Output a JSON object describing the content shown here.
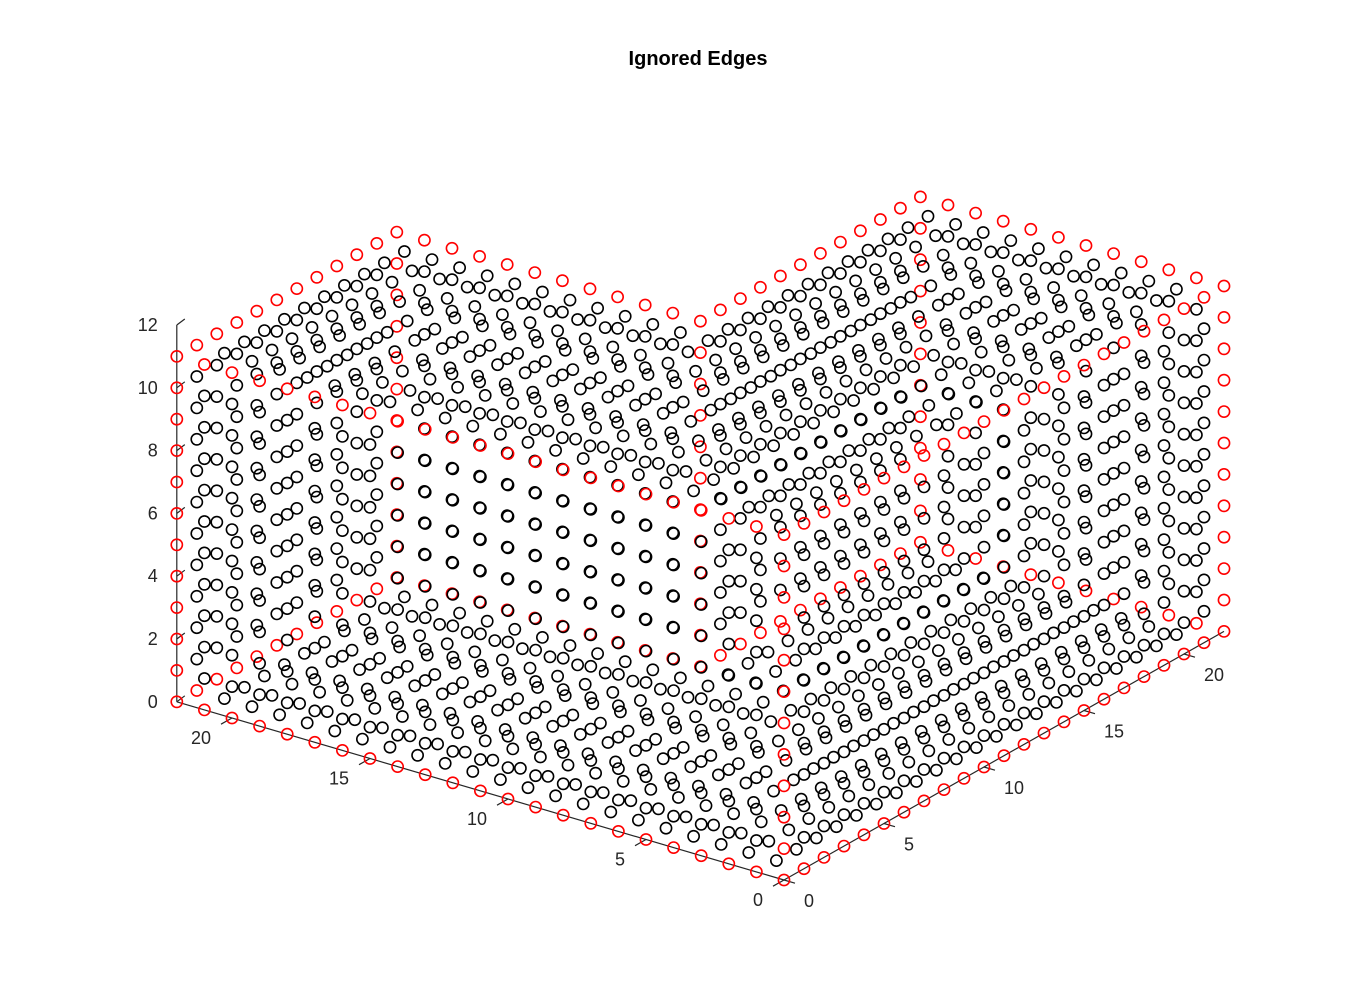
{
  "chart_data": {
    "type": "scatter",
    "title": "Ignored Edges",
    "description_shape": "L-shaped solid sampled on a unit grid",
    "xlabel": "",
    "ylabel": "",
    "zlabel": "",
    "xlim": [
      0,
      22
    ],
    "ylim": [
      0,
      22
    ],
    "zlim": [
      0,
      12
    ],
    "x_ticks": [
      "0",
      "5",
      "10",
      "15",
      "20"
    ],
    "y_ticks": [
      "0",
      "5",
      "10",
      "15",
      "20"
    ],
    "z_ticks": [
      "0",
      "2",
      "4",
      "6",
      "8",
      "10",
      "12"
    ],
    "point_spacing": 1,
    "solid_blocks": [
      {
        "x": [
          0,
          22
        ],
        "y": [
          0,
          11
        ],
        "z": [
          0,
          11
        ]
      },
      {
        "x": [
          0,
          11
        ],
        "y": [
          11,
          22
        ],
        "z": [
          0,
          11
        ]
      }
    ],
    "marker": "o",
    "series": [
      {
        "name": "",
        "color": "#ff0000",
        "rule": "points on the outer edges of the solid"
      },
      {
        "name": "",
        "color": "#000000",
        "rule": "all other surface points"
      }
    ],
    "grid": false,
    "legend": "none"
  }
}
